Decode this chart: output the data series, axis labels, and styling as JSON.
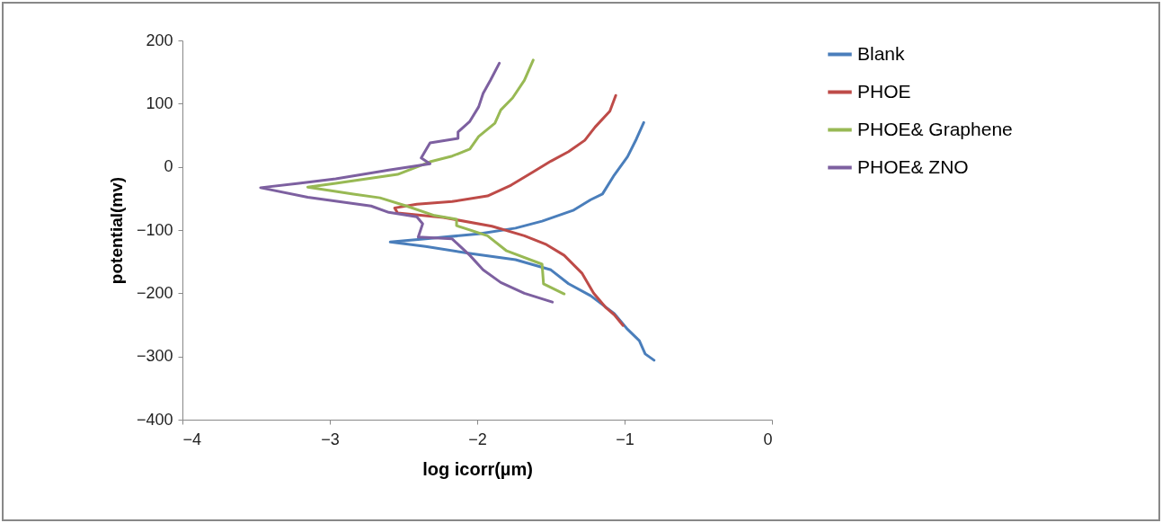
{
  "chart_data": {
    "type": "line",
    "xlabel": "log icorr(µm)",
    "ylabel": "potential(mv)",
    "xlim": [
      -4,
      0
    ],
    "xticks": [
      -4,
      -3,
      -2,
      -1,
      0
    ],
    "ylim": [
      -400,
      200
    ],
    "yticks": [
      -400,
      -300,
      -200,
      -100,
      0,
      100,
      200
    ],
    "grid": false,
    "legend": "right",
    "marker": "none",
    "line_style": "solid",
    "series": [
      {
        "name": "Blank",
        "color": "#4a7ebb",
        "x": [
          -0.87,
          -0.92,
          -0.98,
          -1.07,
          -1.15,
          -1.23,
          -1.35,
          -1.56,
          -1.74,
          -1.99,
          -2.35,
          -2.59,
          -2.35,
          -2.05,
          -1.74,
          -1.5,
          -1.38,
          -1.23,
          -1.07,
          -0.98,
          -0.9,
          -0.86,
          -0.8
        ],
        "values": [
          70,
          44,
          16,
          -13,
          -43,
          -52,
          -69,
          -86,
          -97,
          -106,
          -114,
          -119,
          -126,
          -137,
          -147,
          -163,
          -185,
          -204,
          -232,
          -257,
          -275,
          -296,
          -306
        ]
      },
      {
        "name": "PHOE",
        "color": "#be4b48",
        "x": [
          -1.06,
          -1.1,
          -1.2,
          -1.27,
          -1.38,
          -1.5,
          -1.62,
          -1.77,
          -1.93,
          -2.17,
          -2.41,
          -2.56,
          -2.54,
          -2.23,
          -1.9,
          -1.68,
          -1.53,
          -1.41,
          -1.29,
          -1.21,
          -1.13,
          -1.07,
          -1.01
        ],
        "values": [
          113,
          88,
          63,
          42,
          24,
          9,
          -8,
          -29,
          -46,
          -55,
          -59,
          -65,
          -73,
          -80,
          -94,
          -109,
          -123,
          -140,
          -168,
          -200,
          -222,
          -234,
          -251
        ]
      },
      {
        "name": "PHOE& Graphene",
        "color": "#98b954",
        "x": [
          -1.62,
          -1.68,
          -1.76,
          -1.84,
          -1.88,
          -1.99,
          -2.05,
          -2.17,
          -2.32,
          -2.54,
          -2.96,
          -3.15,
          -2.84,
          -2.66,
          -2.48,
          -2.29,
          -2.14,
          -2.14,
          -1.93,
          -1.8,
          -1.56,
          -1.55,
          -1.41
        ],
        "values": [
          169,
          137,
          109,
          90,
          69,
          48,
          28,
          17,
          8,
          -12,
          -26,
          -32,
          -43,
          -49,
          -62,
          -77,
          -83,
          -93,
          -109,
          -133,
          -154,
          -185,
          -201
        ]
      },
      {
        "name": "PHOE& ZNO",
        "color": "#7d60a0",
        "x": [
          -1.85,
          -1.91,
          -1.96,
          -1.99,
          -2.05,
          -2.13,
          -2.13,
          -2.32,
          -2.38,
          -2.32,
          -2.6,
          -2.96,
          -3.21,
          -3.47,
          -3.15,
          -2.72,
          -2.6,
          -2.41,
          -2.37,
          -2.4,
          -2.17,
          -2.05,
          -1.96,
          -1.84,
          -1.68,
          -1.49
        ],
        "values": [
          164,
          137,
          116,
          95,
          72,
          55,
          45,
          38,
          14,
          5,
          -5,
          -19,
          -26,
          -33,
          -48,
          -62,
          -72,
          -79,
          -90,
          -111,
          -114,
          -140,
          -163,
          -183,
          -200,
          -214
        ]
      }
    ]
  }
}
